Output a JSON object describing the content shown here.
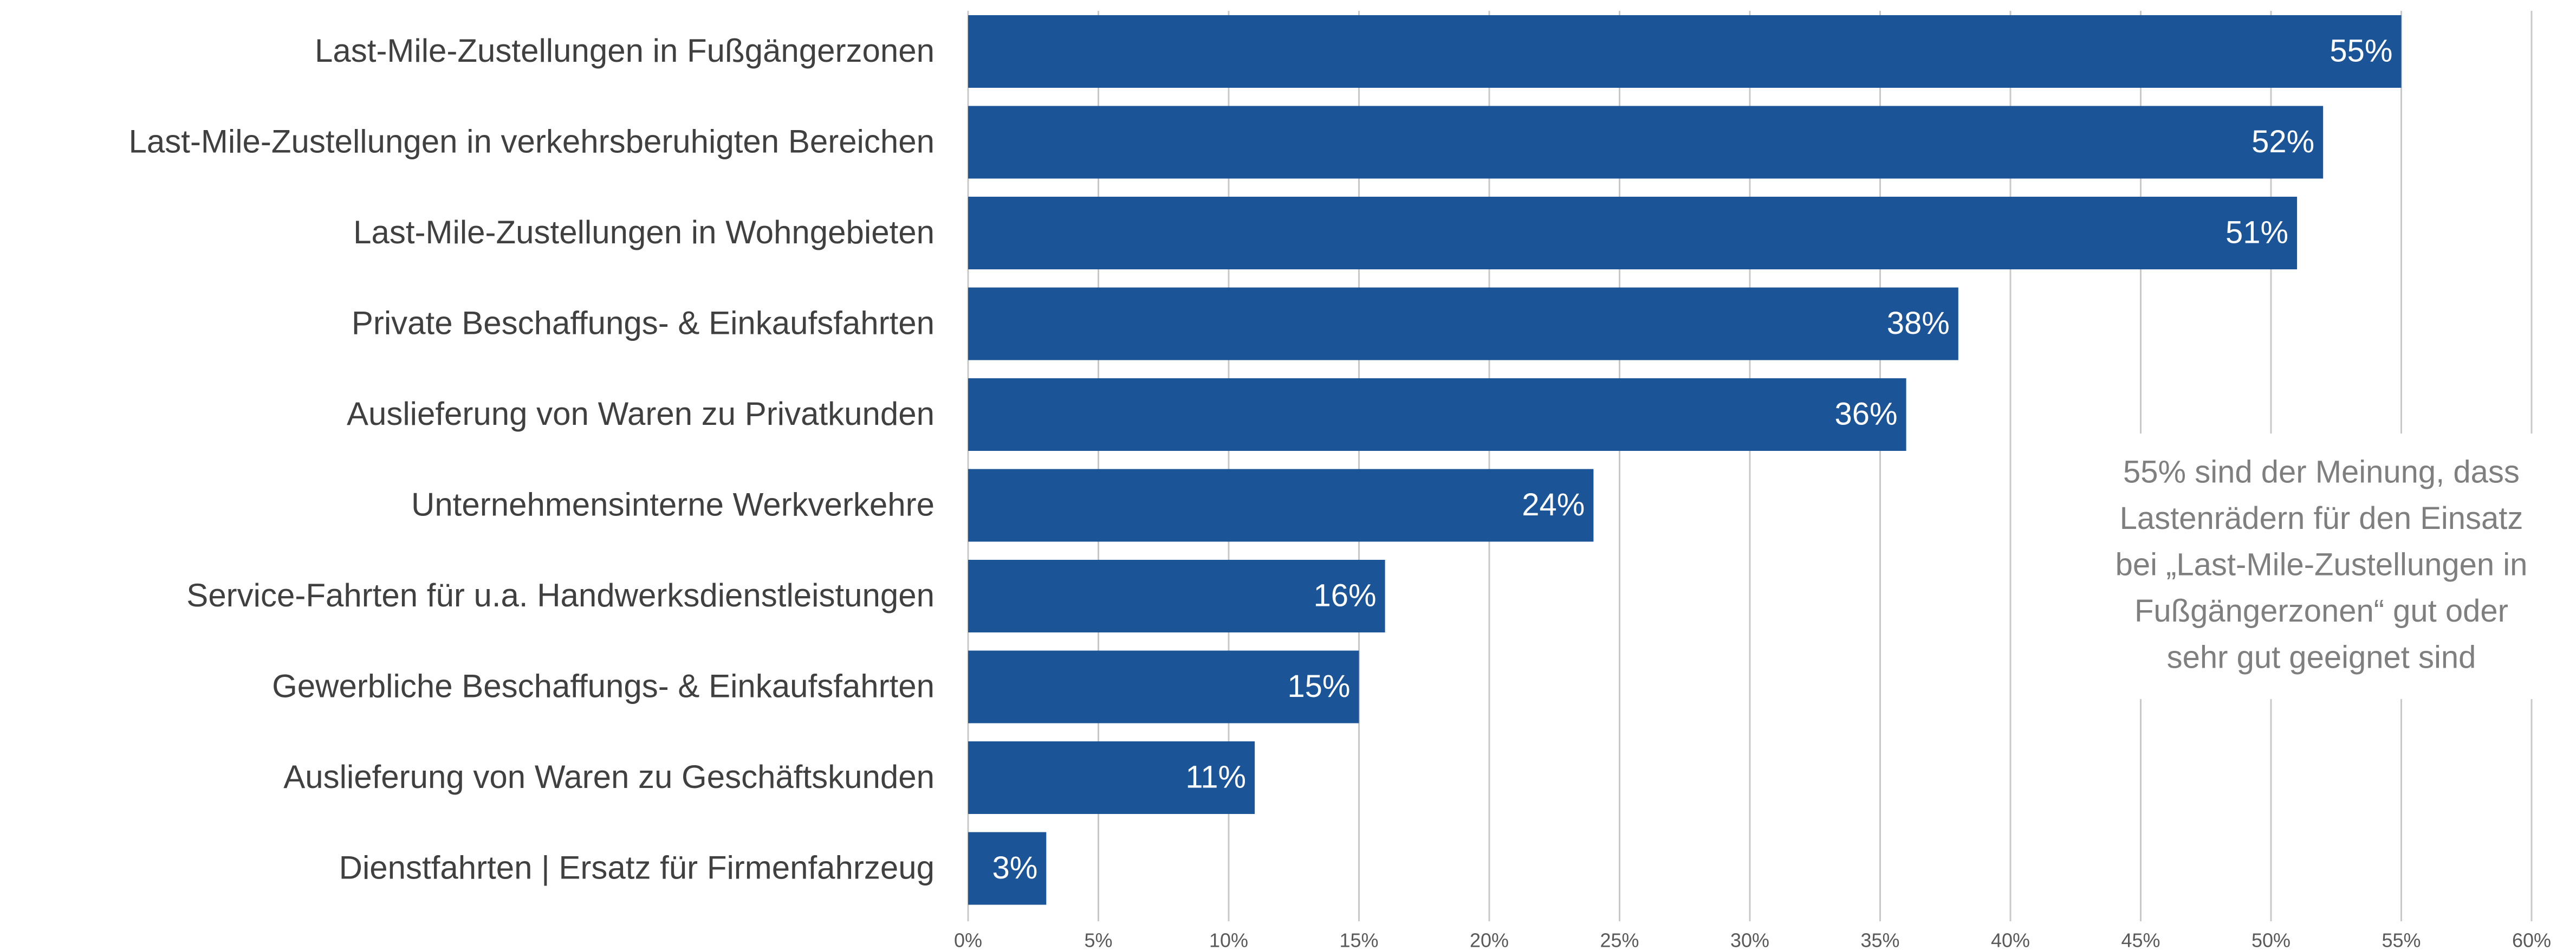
{
  "chart_data": {
    "type": "barh",
    "categories": [
      "Last-Mile-Zustellungen in Fußgängerzonen",
      "Last-Mile-Zustellungen in verkehrsberuhigten Bereichen",
      "Last-Mile-Zustellungen in Wohngebieten",
      "Private Beschaffungs- & Einkaufsfahrten",
      "Auslieferung von Waren zu Privatkunden",
      "Unternehmensinterne Werkverkehre",
      "Service-Fahrten für u.a. Handwerksdienstleistungen",
      "Gewerbliche Beschaffungs- & Einkaufsfahrten",
      "Auslieferung von Waren zu Geschäftskunden",
      "Dienstfahrten | Ersatz für Firmenfahrzeug"
    ],
    "values": [
      55,
      52,
      51,
      38,
      36,
      24,
      16,
      15,
      11,
      3
    ],
    "value_labels": [
      "55%",
      "52%",
      "51%",
      "38%",
      "36%",
      "24%",
      "16%",
      "15%",
      "11%",
      "3%"
    ],
    "color": "#1b5598",
    "xlim": [
      0,
      60
    ],
    "xticks": [
      {
        "value": 0,
        "label": "0%"
      },
      {
        "value": 5,
        "label": "5%"
      },
      {
        "value": 10,
        "label": "10%"
      },
      {
        "value": 15,
        "label": "15%"
      },
      {
        "value": 20,
        "label": "20%"
      },
      {
        "value": 25,
        "label": "25%"
      },
      {
        "value": 30,
        "label": "30%"
      },
      {
        "value": 35,
        "label": "35%"
      },
      {
        "value": 40,
        "label": "40%"
      },
      {
        "value": 45,
        "label": "45%"
      },
      {
        "value": 50,
        "label": "50%"
      },
      {
        "value": 55,
        "label": "55%"
      },
      {
        "value": 60,
        "label": "60%"
      }
    ],
    "grid": true,
    "annotation": [
      "55% sind der Meinung, dass",
      "Lastenrädern für den Einsatz",
      "bei „Last-Mile-Zustellungen in",
      "Fußgängerzonen“ gut oder",
      "sehr gut geeignet sind"
    ]
  }
}
